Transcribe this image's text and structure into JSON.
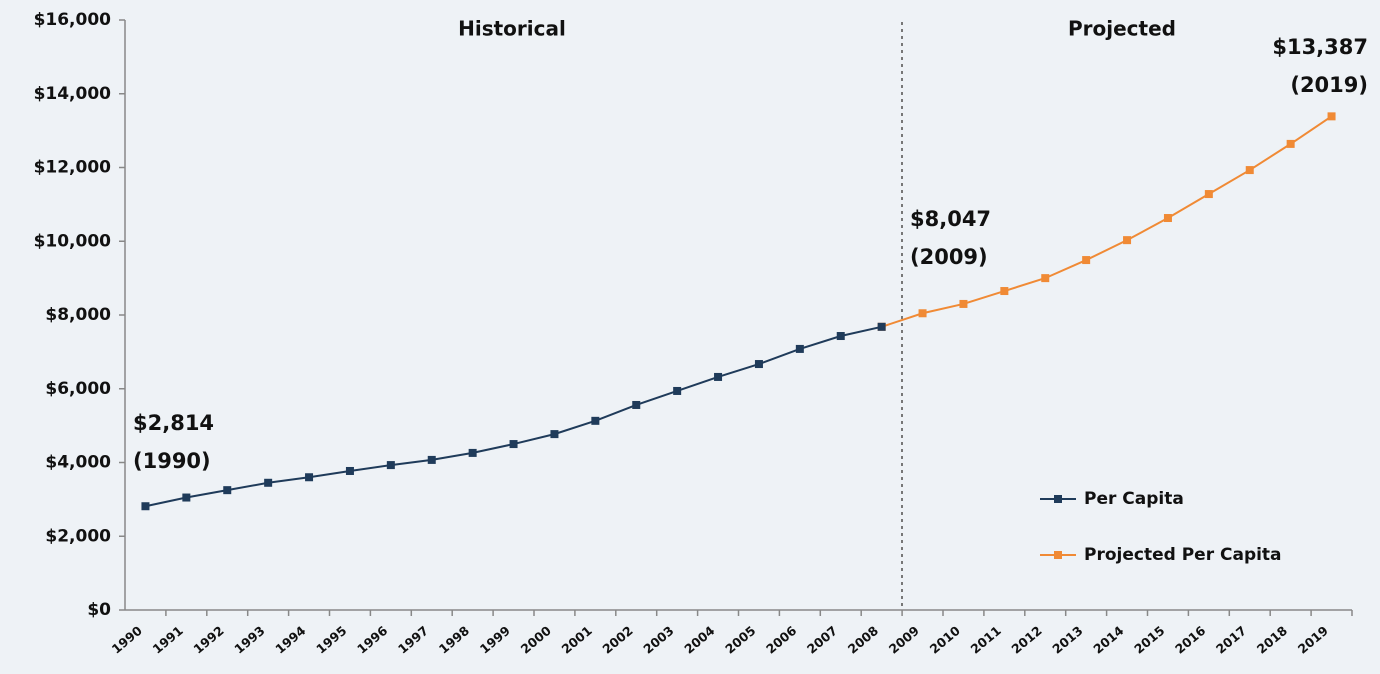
{
  "chart_data": {
    "type": "line",
    "categories": [
      "1990",
      "1991",
      "1992",
      "1993",
      "1994",
      "1995",
      "1996",
      "1997",
      "1998",
      "1999",
      "2000",
      "2001",
      "2002",
      "2003",
      "2004",
      "2005",
      "2006",
      "2007",
      "2008",
      "2009",
      "2010",
      "2011",
      "2012",
      "2013",
      "2014",
      "2015",
      "2016",
      "2017",
      "2018",
      "2019"
    ],
    "series": [
      {
        "name": "Per Capita",
        "color": "#1f3b5a",
        "values": [
          2814,
          3050,
          3250,
          3450,
          3600,
          3770,
          3930,
          4070,
          4260,
          4500,
          4770,
          5130,
          5560,
          5940,
          6320,
          6670,
          7080,
          7430,
          7680,
          null,
          null,
          null,
          null,
          null,
          null,
          null,
          null,
          null,
          null,
          null
        ]
      },
      {
        "name": "Projected Per Capita",
        "color": "#f08a35",
        "values": [
          null,
          null,
          null,
          null,
          null,
          null,
          null,
          null,
          null,
          null,
          null,
          null,
          null,
          null,
          null,
          null,
          null,
          null,
          7680,
          8047,
          8300,
          8650,
          9000,
          9490,
          10030,
          10630,
          11280,
          11930,
          12640,
          13387
        ]
      }
    ],
    "ylim": [
      0,
      16000
    ],
    "yticks": [
      {
        "value": 0,
        "label": "$0"
      },
      {
        "value": 2000,
        "label": "$2,000"
      },
      {
        "value": 4000,
        "label": "$4,000"
      },
      {
        "value": 6000,
        "label": "$6,000"
      },
      {
        "value": 8000,
        "label": "$8,000"
      },
      {
        "value": 10000,
        "label": "$10,000"
      },
      {
        "value": 12000,
        "label": "$12,000"
      },
      {
        "value": 14000,
        "label": "$14,000"
      },
      {
        "value": 16000,
        "label": "$16,000"
      }
    ],
    "sections": [
      "Historical",
      "Projected"
    ],
    "annotations": [
      [
        "$2,814",
        "(1990)"
      ],
      [
        "$8,047",
        "(2009)"
      ],
      [
        "$13,387",
        "(2019)"
      ]
    ],
    "legend": "lower right"
  }
}
